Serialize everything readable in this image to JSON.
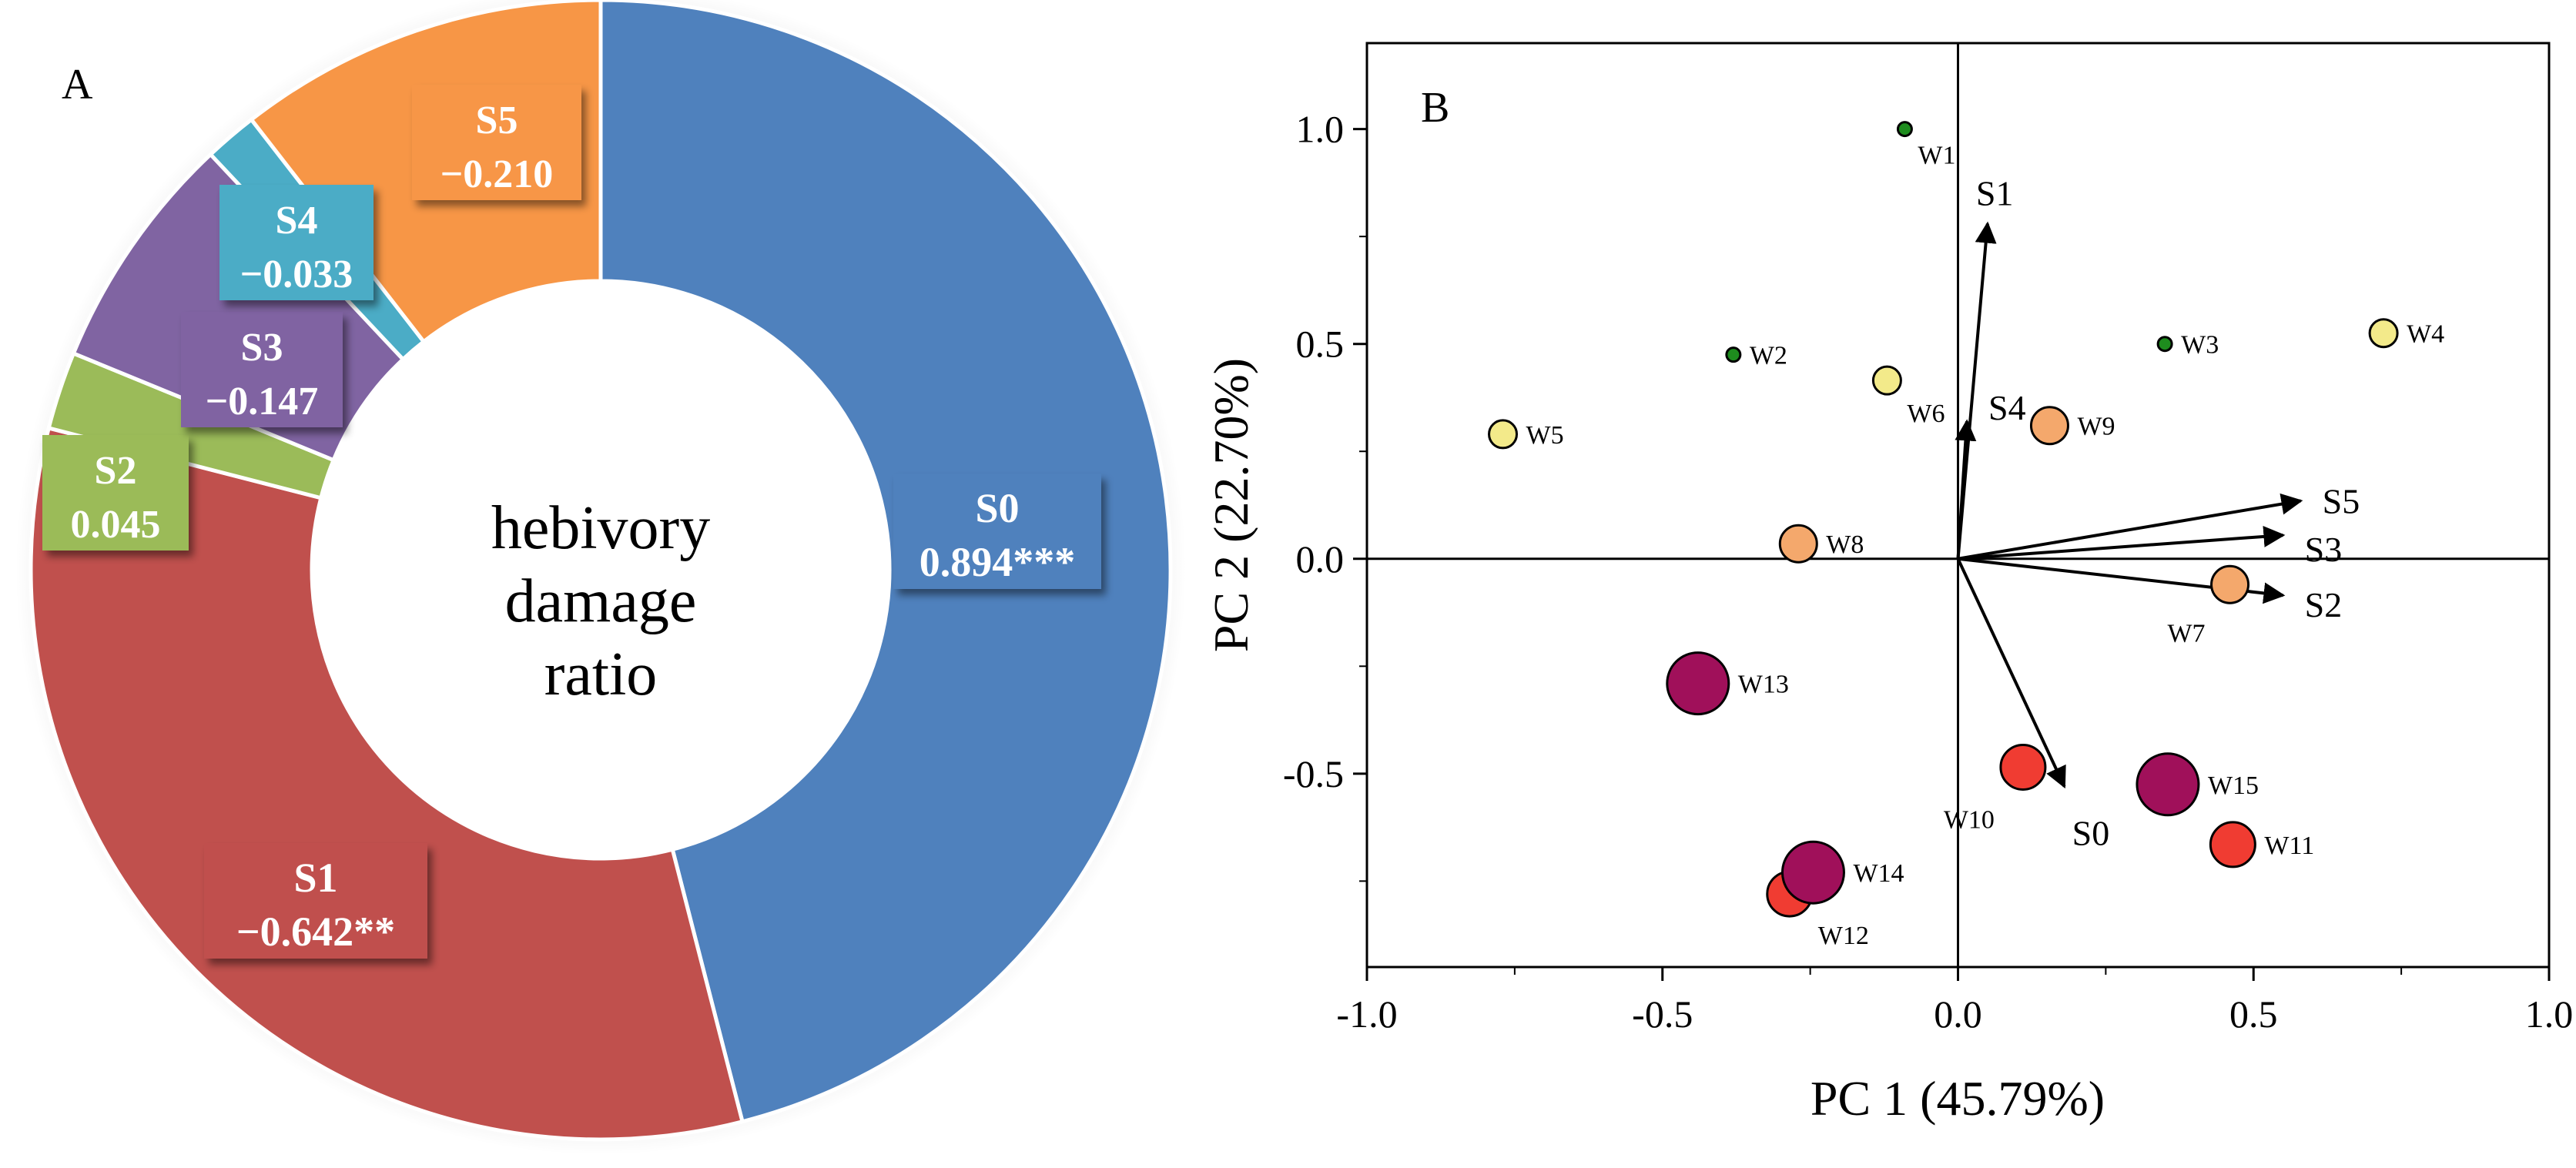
{
  "panels": {
    "a_label": "A",
    "b_label": "B"
  },
  "chart_data": [
    {
      "type": "pie",
      "title": "hebivory damage ratio",
      "center_lines": [
        "hebivory",
        "damage",
        "ratio"
      ],
      "slices": [
        {
          "name": "S0",
          "value": 0.894,
          "label": "0.894***",
          "share": 0.46,
          "color": "#4f81bd"
        },
        {
          "name": "S1",
          "value": -0.642,
          "label": "−0.642**",
          "share": 0.33,
          "color": "#c0504d"
        },
        {
          "name": "S2",
          "value": 0.045,
          "label": "0.045",
          "share": 0.022,
          "color": "#9bbb59"
        },
        {
          "name": "S3",
          "value": -0.147,
          "label": "−0.147",
          "share": 0.068,
          "color": "#8064a2"
        },
        {
          "name": "S4",
          "value": -0.033,
          "label": "−0.033",
          "share": 0.015,
          "color": "#4bacc6"
        },
        {
          "name": "S5",
          "value": -0.21,
          "label": "−0.210",
          "share": 0.105,
          "color": "#f79646"
        }
      ]
    },
    {
      "type": "scatter",
      "xlabel": "PC 1 (45.79%)",
      "ylabel": "PC 2 (22.70%)",
      "xlim": [
        -1.0,
        1.0
      ],
      "ylim": [
        -0.95,
        1.2
      ],
      "xticks": [
        -1.0,
        -0.5,
        0.0,
        0.5,
        1.0
      ],
      "xtick_labels": [
        "-1.0",
        "-0.5",
        "0.0",
        "0.5",
        "1.0"
      ],
      "yticks": [
        -0.5,
        0.0,
        0.5,
        1.0
      ],
      "ytick_labels": [
        "-0.5",
        "0.0",
        "0.5",
        "1.0"
      ],
      "points": [
        {
          "name": "W1",
          "x": -0.09,
          "y": 1.0,
          "size": "xs",
          "color": "#1e8c1e",
          "label_pos": "below-right"
        },
        {
          "name": "W2",
          "x": -0.38,
          "y": 0.475,
          "size": "xs",
          "color": "#1e8c1e",
          "label_pos": "right"
        },
        {
          "name": "W3",
          "x": 0.35,
          "y": 0.5,
          "size": "xs",
          "color": "#1e8c1e",
          "label_pos": "right"
        },
        {
          "name": "W4",
          "x": 0.72,
          "y": 0.525,
          "size": "s",
          "color": "#f3ea8a",
          "label_pos": "right"
        },
        {
          "name": "W5",
          "x": -0.77,
          "y": 0.29,
          "size": "s",
          "color": "#f3ea8a",
          "label_pos": "right"
        },
        {
          "name": "W6",
          "x": -0.12,
          "y": 0.415,
          "size": "s",
          "color": "#f3ea8a",
          "label_pos": "below-right"
        },
        {
          "name": "W7",
          "x": 0.46,
          "y": -0.06,
          "size": "m",
          "color": "#f4a86c",
          "label_pos": "below-left"
        },
        {
          "name": "W8",
          "x": -0.27,
          "y": 0.035,
          "size": "m",
          "color": "#f4a86c",
          "label_pos": "right"
        },
        {
          "name": "W9",
          "x": 0.155,
          "y": 0.31,
          "size": "m",
          "color": "#f4a86c",
          "label_pos": "right"
        },
        {
          "name": "W10",
          "x": 0.11,
          "y": -0.485,
          "size": "l",
          "color": "#f03c32",
          "label_pos": "below-left"
        },
        {
          "name": "W11",
          "x": 0.465,
          "y": -0.665,
          "size": "l",
          "color": "#f03c32",
          "label_pos": "right"
        },
        {
          "name": "W12",
          "x": -0.285,
          "y": -0.78,
          "size": "l",
          "color": "#f03c32",
          "label_pos": "below-right"
        },
        {
          "name": "W13",
          "x": -0.44,
          "y": -0.29,
          "size": "xl",
          "color": "#a0105a",
          "label_pos": "right"
        },
        {
          "name": "W14",
          "x": -0.245,
          "y": -0.73,
          "size": "xl",
          "color": "#a0105a",
          "label_pos": "right"
        },
        {
          "name": "W15",
          "x": 0.355,
          "y": -0.525,
          "size": "xl",
          "color": "#a0105a",
          "label_pos": "right"
        }
      ],
      "vectors": [
        {
          "name": "S0",
          "x": 0.18,
          "y": -0.53
        },
        {
          "name": "S1",
          "x": 0.05,
          "y": 0.78
        },
        {
          "name": "S2",
          "x": 0.55,
          "y": -0.085
        },
        {
          "name": "S3",
          "x": 0.55,
          "y": 0.055
        },
        {
          "name": "S4",
          "x": 0.015,
          "y": 0.32
        },
        {
          "name": "S5",
          "x": 0.58,
          "y": 0.135
        }
      ]
    }
  ]
}
